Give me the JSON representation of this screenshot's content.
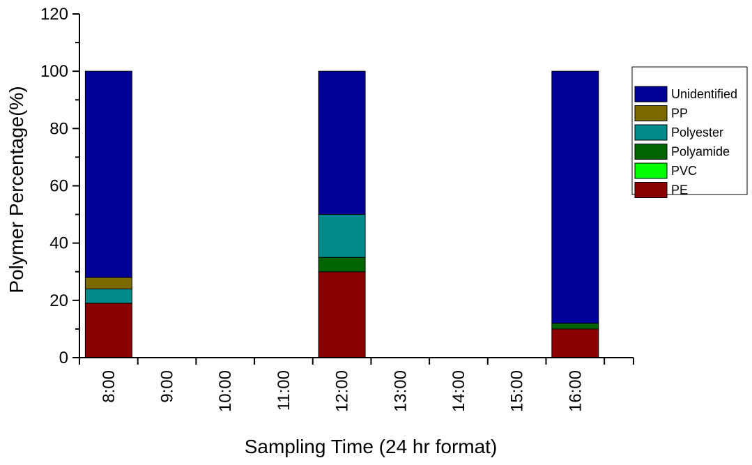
{
  "chart_data": {
    "type": "bar",
    "stacked": true,
    "title": "",
    "xlabel": "Sampling Time (24 hr format)",
    "ylabel": "Polymer Percentage(%)",
    "ylim": [
      0,
      120
    ],
    "yticks": [
      0,
      20,
      40,
      60,
      80,
      100,
      120
    ],
    "categories": [
      "8:00",
      "9:00",
      "10:00",
      "11:00",
      "12:00",
      "13:00",
      "14:00",
      "15:00",
      "16:00"
    ],
    "grid": false,
    "legend_position": "right",
    "series": [
      {
        "name": "PE",
        "color": "#8B0000",
        "values": [
          19,
          null,
          null,
          null,
          30,
          null,
          null,
          null,
          10
        ]
      },
      {
        "name": "PVC",
        "color": "#00FF00",
        "values": [
          0,
          null,
          null,
          null,
          0,
          null,
          null,
          null,
          0
        ]
      },
      {
        "name": "Polyamide",
        "color": "#006400",
        "values": [
          0,
          null,
          null,
          null,
          5,
          null,
          null,
          null,
          2
        ]
      },
      {
        "name": "Polyester",
        "color": "#008B8B",
        "values": [
          5,
          null,
          null,
          null,
          15,
          null,
          null,
          null,
          0
        ]
      },
      {
        "name": "PP",
        "color": "#7A6A00",
        "values": [
          4,
          null,
          null,
          null,
          0,
          null,
          null,
          null,
          0
        ]
      },
      {
        "name": "Unidentified",
        "color": "#000099",
        "values": [
          72,
          null,
          null,
          null,
          50,
          null,
          null,
          null,
          88
        ]
      }
    ],
    "legend_order": [
      "Unidentified",
      "PP",
      "Polyester",
      "Polyamide",
      "PVC",
      "PE"
    ]
  }
}
